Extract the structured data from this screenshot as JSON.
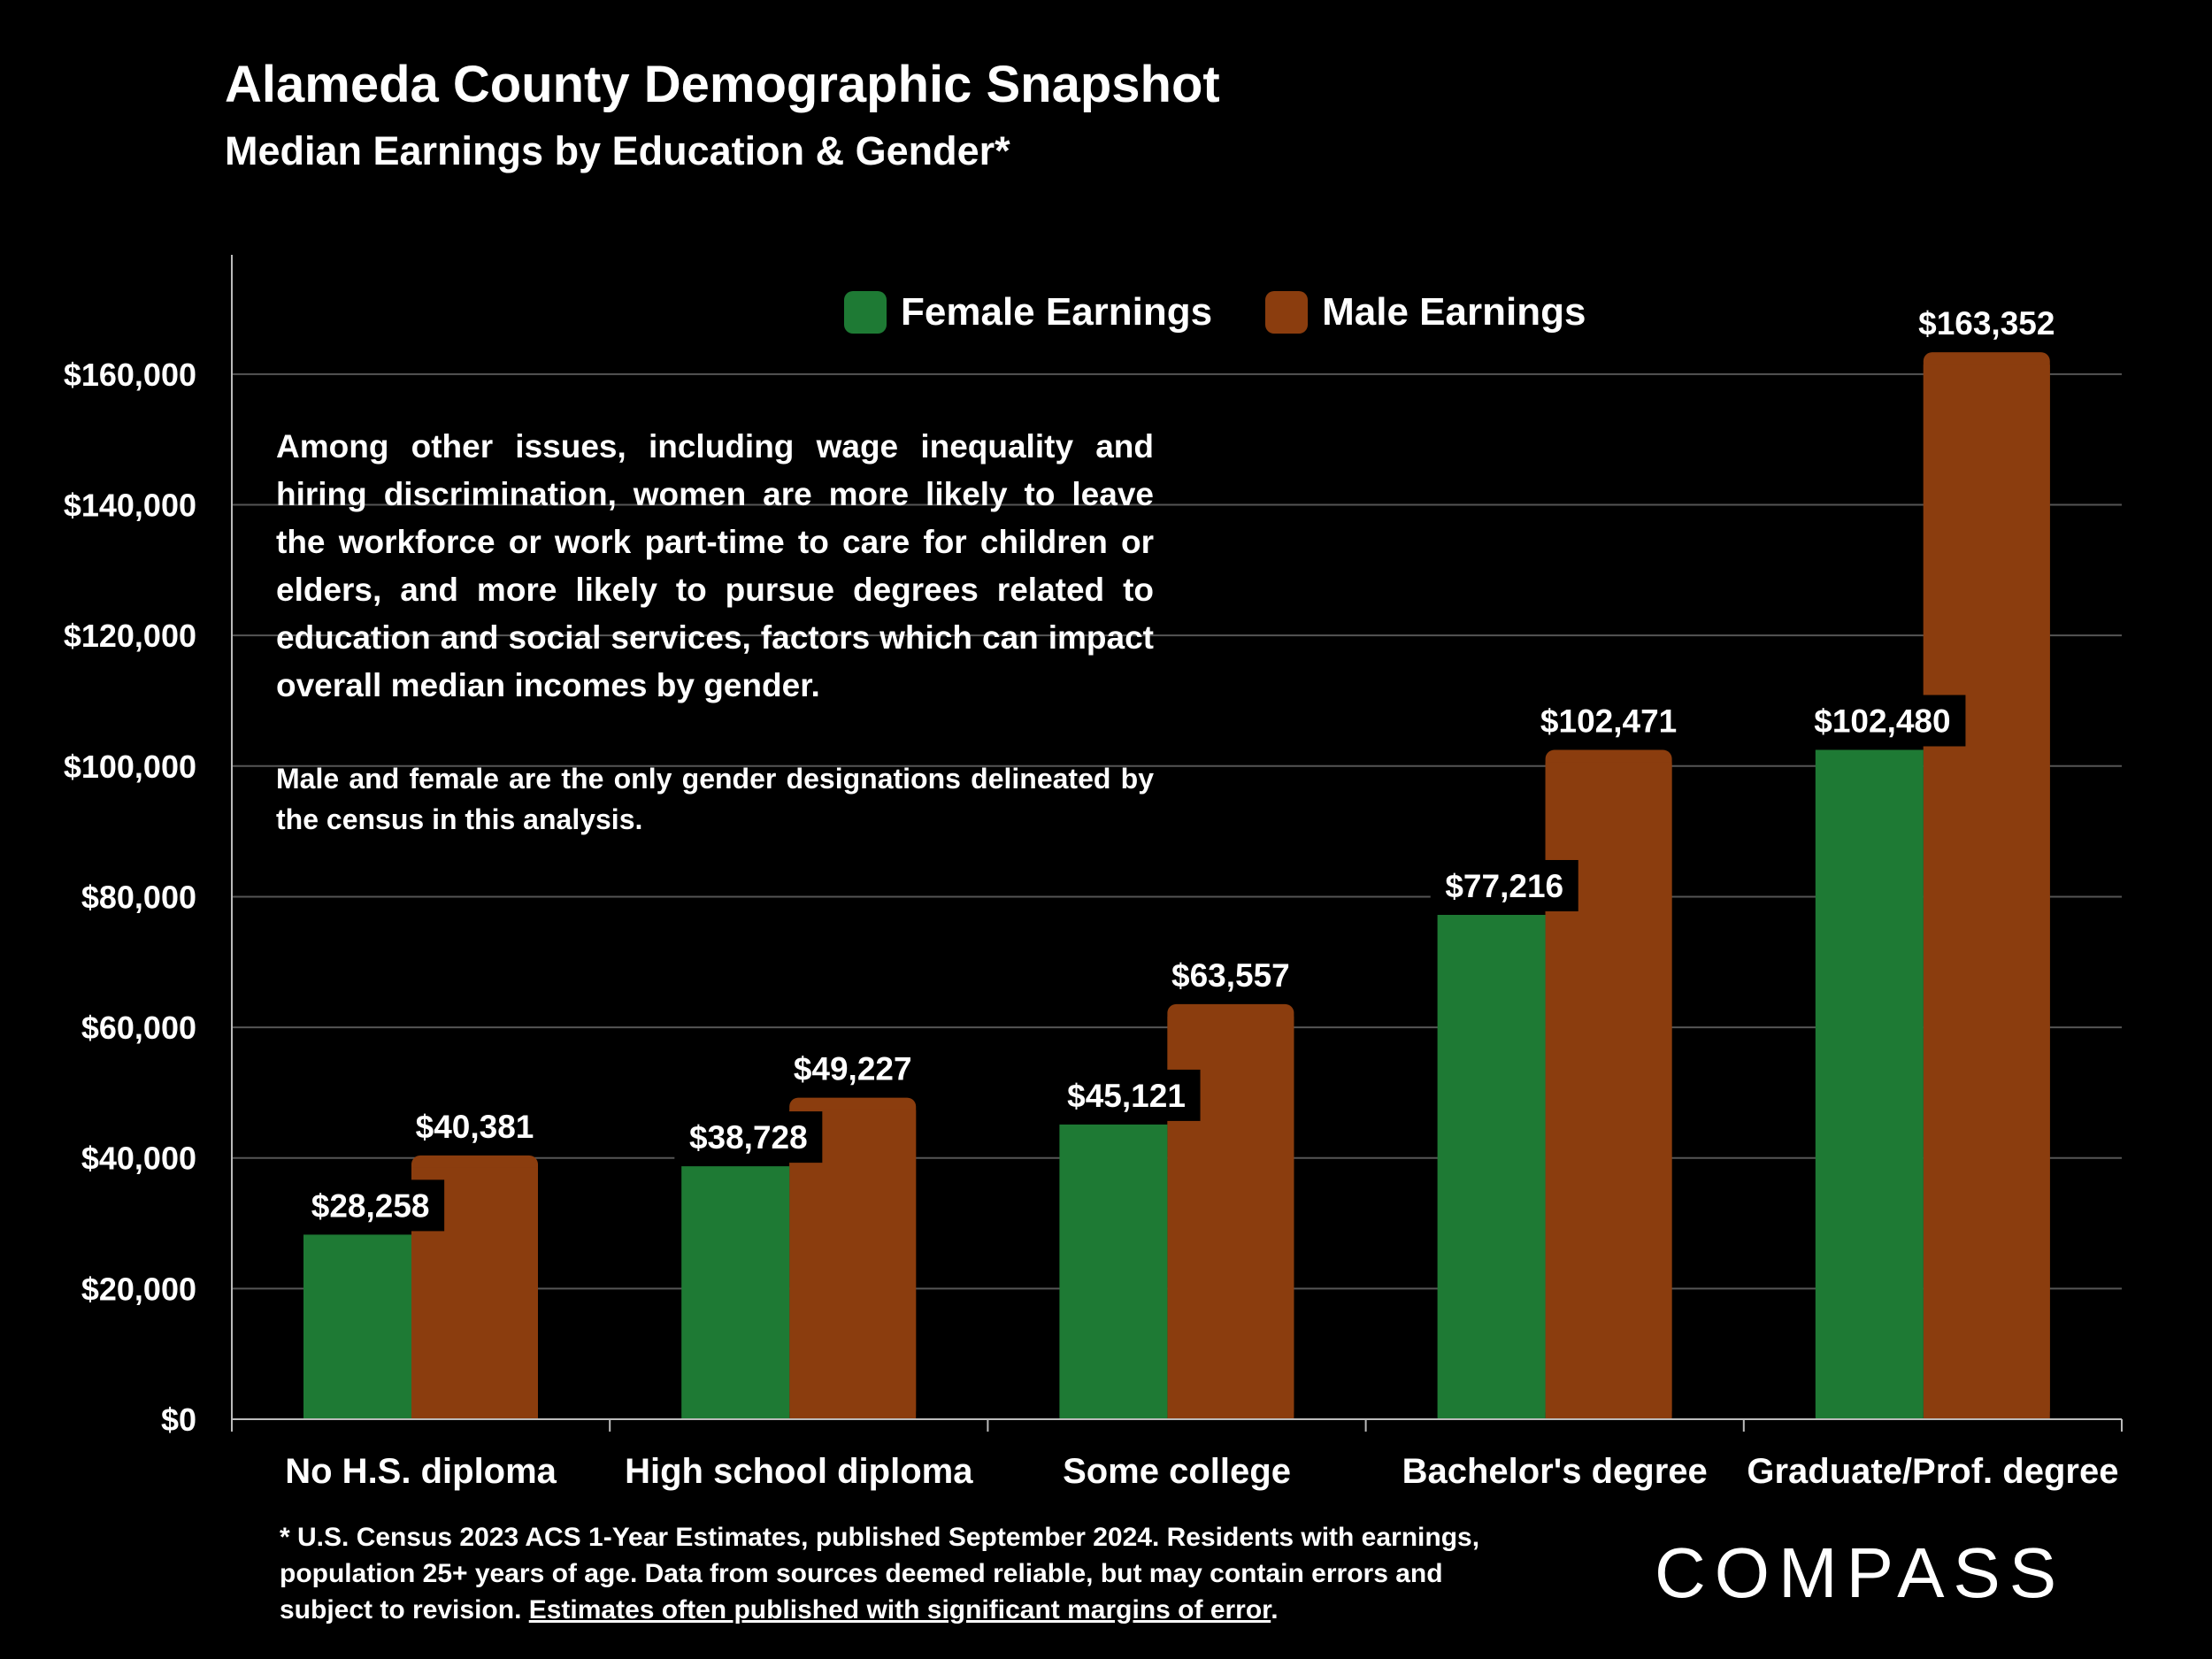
{
  "title": "Alameda County Demographic Snapshot",
  "subtitle": "Median Earnings by Education & Gender*",
  "legend": [
    {
      "label": "Female Earnings",
      "color": "#1e7a34"
    },
    {
      "label": "Male Earnings",
      "color": "#8b3d0e"
    }
  ],
  "notes": {
    "main": "Among other issues, including wage inequality and hiring discrimination, women are more likely to leave the workforce or work part-time to care for children or elders, and more likely to pursue degrees related to education and social services, factors which can impact overall median incomes by gender.",
    "secondary": "Male and female are the only gender designations delineated by the census in this analysis."
  },
  "footnote": {
    "text": "* U.S. Census 2023 ACS 1-Year Estimates, published September 2024. Residents with earnings, population 25+ years of age. Data from sources deemed reliable, but may contain errors and subject to revision. ",
    "link_text": "Estimates often published with significant margins of error",
    "end": "."
  },
  "logo": "COMPASS",
  "chart_data": {
    "type": "bar",
    "categories": [
      "No H.S. diploma",
      "High school diploma",
      "Some college",
      "Bachelor's degree",
      "Graduate/Prof. degree"
    ],
    "series": [
      {
        "name": "Female Earnings",
        "color": "#1e7a34",
        "values": [
          28258,
          38728,
          45121,
          77216,
          102480
        ],
        "labels": [
          "$28,258",
          "$38,728",
          "$45,121",
          "$77,216",
          "$102,480"
        ]
      },
      {
        "name": "Male Earnings",
        "color": "#8b3d0e",
        "values": [
          40381,
          49227,
          63557,
          102471,
          163352
        ],
        "labels": [
          "$40,381",
          "$49,227",
          "$63,557",
          "$102,471",
          "$163,352"
        ]
      }
    ],
    "yticks": [
      0,
      20000,
      40000,
      60000,
      80000,
      100000,
      120000,
      140000,
      160000
    ],
    "ytick_labels": [
      "$0",
      "$20,000",
      "$40,000",
      "$60,000",
      "$80,000",
      "$100,000",
      "$120,000",
      "$140,000",
      "$160,000"
    ],
    "ylim": [
      0,
      178000
    ],
    "grid": true,
    "legend_position": "top"
  }
}
